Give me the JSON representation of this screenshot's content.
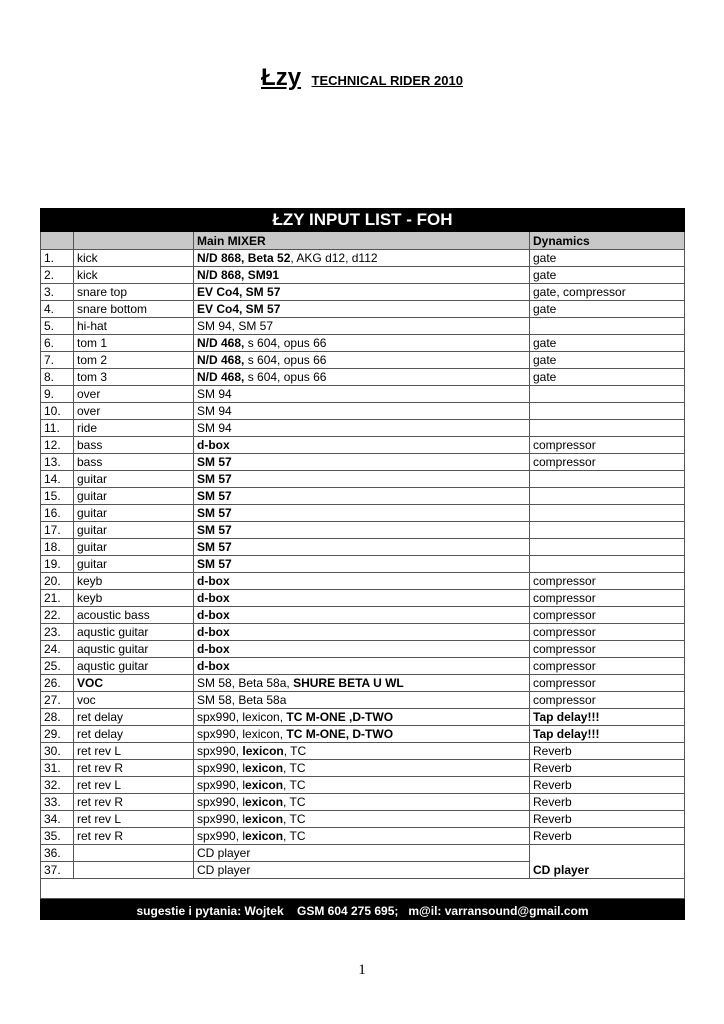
{
  "header": {
    "band": "Łzy",
    "subtitle": "TECHNICAL RIDER 2010"
  },
  "table": {
    "title": "ŁZY INPUT LIST - FOH",
    "col_mixer": "Main MIXER",
    "col_dynamics": "Dynamics",
    "rows": [
      {
        "n": "1.",
        "name": "kick",
        "mixer": [
          {
            "t": "N/D 868, Beta 52",
            "b": true
          },
          {
            "t": ", AKG d12, d112",
            "b": false
          }
        ],
        "dyn": "gate"
      },
      {
        "n": "2.",
        "name": "kick",
        "mixer": [
          {
            "t": "N/D 868, SM91",
            "b": true
          }
        ],
        "dyn": "gate"
      },
      {
        "n": "3.",
        "name": "snare top",
        "mixer": [
          {
            "t": "EV Co4, SM 57",
            "b": true
          }
        ],
        "dyn": "gate, compressor"
      },
      {
        "n": "4.",
        "name": "snare bottom",
        "mixer": [
          {
            "t": "EV Co4, SM 57",
            "b": true
          }
        ],
        "dyn": "gate"
      },
      {
        "n": "5.",
        "name": "hi-hat",
        "mixer": [
          {
            "t": "SM 94, SM 57",
            "b": false
          }
        ],
        "dyn": ""
      },
      {
        "n": "6.",
        "name": "tom 1",
        "mixer": [
          {
            "t": "N/D 468,",
            "b": true
          },
          {
            "t": " s 604, opus 66",
            "b": false
          }
        ],
        "dyn": "gate"
      },
      {
        "n": "7.",
        "name": "tom 2",
        "mixer": [
          {
            "t": "N/D 468,",
            "b": true
          },
          {
            "t": " s 604, opus 66",
            "b": false
          }
        ],
        "dyn": "gate"
      },
      {
        "n": "8.",
        "name": "tom 3",
        "mixer": [
          {
            "t": "N/D 468,",
            "b": true
          },
          {
            "t": " s 604, opus 66",
            "b": false
          }
        ],
        "dyn": "gate"
      },
      {
        "n": "9.",
        "name": "over",
        "mixer": [
          {
            "t": "SM 94",
            "b": false
          }
        ],
        "dyn": ""
      },
      {
        "n": "10.",
        "name": "over",
        "mixer": [
          {
            "t": "SM 94",
            "b": false
          }
        ],
        "dyn": ""
      },
      {
        "n": "11.",
        "name": "ride",
        "mixer": [
          {
            "t": "SM 94",
            "b": false
          }
        ],
        "dyn": ""
      },
      {
        "n": "12.",
        "name": "bass",
        "mixer": [
          {
            "t": "d-box",
            "b": true
          }
        ],
        "dyn": "compressor"
      },
      {
        "n": "13.",
        "name": "bass",
        "mixer": [
          {
            "t": "SM 57",
            "b": true
          }
        ],
        "dyn": "compressor"
      },
      {
        "n": "14.",
        "name": "guitar",
        "mixer": [
          {
            "t": "SM 57",
            "b": true
          }
        ],
        "dyn": ""
      },
      {
        "n": "15.",
        "name": "guitar",
        "mixer": [
          {
            "t": "SM 57",
            "b": true
          }
        ],
        "dyn": ""
      },
      {
        "n": "16.",
        "name": "guitar",
        "mixer": [
          {
            "t": "SM 57",
            "b": true
          }
        ],
        "dyn": ""
      },
      {
        "n": "17.",
        "name": "guitar",
        "mixer": [
          {
            "t": "SM 57",
            "b": true
          }
        ],
        "dyn": ""
      },
      {
        "n": "18.",
        "name": "guitar",
        "mixer": [
          {
            "t": "SM 57",
            "b": true
          }
        ],
        "dyn": ""
      },
      {
        "n": "19.",
        "name": "guitar",
        "mixer": [
          {
            "t": "SM 57",
            "b": true
          }
        ],
        "dyn": ""
      },
      {
        "n": "20.",
        "name": "keyb",
        "mixer": [
          {
            "t": "d-box",
            "b": true
          }
        ],
        "dyn": "compressor"
      },
      {
        "n": "21.",
        "name": "keyb",
        "mixer": [
          {
            "t": "d-box",
            "b": true
          }
        ],
        "dyn": "compressor"
      },
      {
        "n": "22.",
        "name": "acoustic bass",
        "mixer": [
          {
            "t": "d-box",
            "b": true
          }
        ],
        "dyn": "compressor"
      },
      {
        "n": "23.",
        "name": "aqustic guitar",
        "mixer": [
          {
            "t": "d-box",
            "b": true
          }
        ],
        "dyn": "compressor"
      },
      {
        "n": "24.",
        "name": "aqustic guitar",
        "mixer": [
          {
            "t": "d-box",
            "b": true
          }
        ],
        "dyn": "compressor"
      },
      {
        "n": "25.",
        "name": "aqustic guitar",
        "mixer": [
          {
            "t": "d-box",
            "b": true
          }
        ],
        "dyn": "compressor"
      },
      {
        "n": "26.",
        "name": "VOC",
        "name_bold": true,
        "mixer": [
          {
            "t": "SM 58, Beta 58a, ",
            "b": false
          },
          {
            "t": "SHURE BETA U WL",
            "b": true
          }
        ],
        "dyn": "compressor"
      },
      {
        "n": "27.",
        "name": "voc",
        "mixer": [
          {
            "t": "SM 58, Beta 58a",
            "b": false
          }
        ],
        "dyn": "compressor"
      },
      {
        "n": "28.",
        "name": "ret delay",
        "mixer": [
          {
            "t": "spx990, lexicon, ",
            "b": false
          },
          {
            "t": "TC M-ONE ,D-TWO",
            "b": true
          }
        ],
        "dyn": "Tap delay!!!",
        "dyn_bold": true
      },
      {
        "n": "29.",
        "name": "ret delay",
        "mixer": [
          {
            "t": "spx990, lexicon, ",
            "b": false
          },
          {
            "t": "TC M-ONE, D-TWO",
            "b": true
          }
        ],
        "dyn": "Tap delay!!!",
        "dyn_bold": true
      },
      {
        "n": "30.",
        "name": "ret rev L",
        "mixer": [
          {
            "t": "spx990, ",
            "b": false
          },
          {
            "t": "lexicon",
            "b": true
          },
          {
            "t": ", TC",
            "b": false
          }
        ],
        "dyn": "Reverb"
      },
      {
        "n": "31.",
        "name": "ret rev R",
        "mixer": [
          {
            "t": "spx990, l",
            "b": false
          },
          {
            "t": "exicon",
            "b": true
          },
          {
            "t": ", TC",
            "b": false
          }
        ],
        "dyn": "Reverb"
      },
      {
        "n": "32.",
        "name": "ret rev L",
        "mixer": [
          {
            "t": "spx990, l",
            "b": false
          },
          {
            "t": "exicon",
            "b": true
          },
          {
            "t": ", TC",
            "b": false
          }
        ],
        "dyn": "Reverb"
      },
      {
        "n": "33.",
        "name": "ret rev R",
        "mixer": [
          {
            "t": "spx990, l",
            "b": false
          },
          {
            "t": "exicon",
            "b": true
          },
          {
            "t": ", TC",
            "b": false
          }
        ],
        "dyn": "Reverb"
      },
      {
        "n": "34.",
        "name": "ret rev L",
        "mixer": [
          {
            "t": "spx990, l",
            "b": false
          },
          {
            "t": "exicon",
            "b": true
          },
          {
            "t": ", TC",
            "b": false
          }
        ],
        "dyn": "Reverb"
      },
      {
        "n": "35.",
        "name": "ret rev R",
        "mixer": [
          {
            "t": "spx990, l",
            "b": false
          },
          {
            "t": "exicon",
            "b": true
          },
          {
            "t": ", TC",
            "b": false
          }
        ],
        "dyn": "Reverb"
      },
      {
        "n": "36.",
        "name": "",
        "mixer": [
          {
            "t": "CD player",
            "b": false
          }
        ],
        "dyn": "CD player",
        "dyn_bold": true,
        "dyn_span": 2
      },
      {
        "n": "37.",
        "name": "",
        "mixer": [
          {
            "t": "CD player",
            "b": false
          }
        ],
        "dyn_skip": true
      }
    ],
    "footer": "sugestie i pytania: Wojtek    GSM 604 275 695;   m@il: varransound@gmail.com"
  },
  "page_number": "1"
}
